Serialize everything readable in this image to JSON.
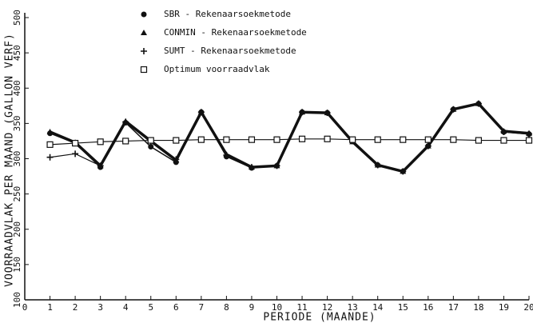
{
  "chart_data": {
    "type": "line",
    "xlabel": "PERIODE (MAANDE)",
    "ylabel": "VOORRAADVLAK PER MAAND (GALLON VERF)",
    "x": [
      1,
      2,
      3,
      4,
      5,
      6,
      7,
      8,
      9,
      10,
      11,
      12,
      13,
      14,
      15,
      16,
      17,
      18,
      19,
      20
    ],
    "series": [
      {
        "name": "SBR  -  Rekenaarsoekmetode",
        "marker": "circle",
        "color": "#111",
        "width": 1.5,
        "values": [
          336,
          322,
          288,
          351,
          317,
          295,
          366,
          303,
          287,
          290,
          366,
          365,
          326,
          291,
          282,
          318,
          370,
          378,
          338,
          335
        ]
      },
      {
        "name": "CONMIN  -  Rekenaarsoekmetode",
        "marker": "triangle",
        "color": "#111",
        "width": 3.5,
        "values": [
          338,
          323,
          290,
          353,
          325,
          298,
          366,
          306,
          288,
          290,
          366,
          365,
          324,
          291,
          282,
          318,
          370,
          378,
          339,
          336
        ]
      },
      {
        "name": "SUMT  -  Rekenaarsoekmetode",
        "marker": "plus",
        "color": "#111",
        "width": 1.2,
        "values": [
          302,
          307,
          290,
          352,
          324,
          299,
          366,
          305,
          288,
          290,
          366,
          365,
          325,
          291,
          282,
          318,
          370,
          378,
          338,
          335
        ]
      },
      {
        "name": "Optimum voorraadvlak",
        "marker": "square",
        "color": "#111",
        "width": 1.2,
        "values": [
          320,
          322,
          324,
          325,
          326,
          326,
          327,
          327,
          327,
          327,
          328,
          328,
          327,
          327,
          327,
          327,
          327,
          326,
          326,
          326
        ]
      }
    ],
    "xlim": [
      0,
      20
    ],
    "xticks": [
      0,
      1,
      2,
      3,
      4,
      5,
      6,
      7,
      8,
      9,
      10,
      11,
      12,
      13,
      14,
      15,
      16,
      17,
      18,
      19,
      20
    ],
    "ylim": [
      100,
      500
    ],
    "yticks": [
      100,
      150,
      200,
      250,
      300,
      350,
      400,
      450,
      500
    ]
  }
}
